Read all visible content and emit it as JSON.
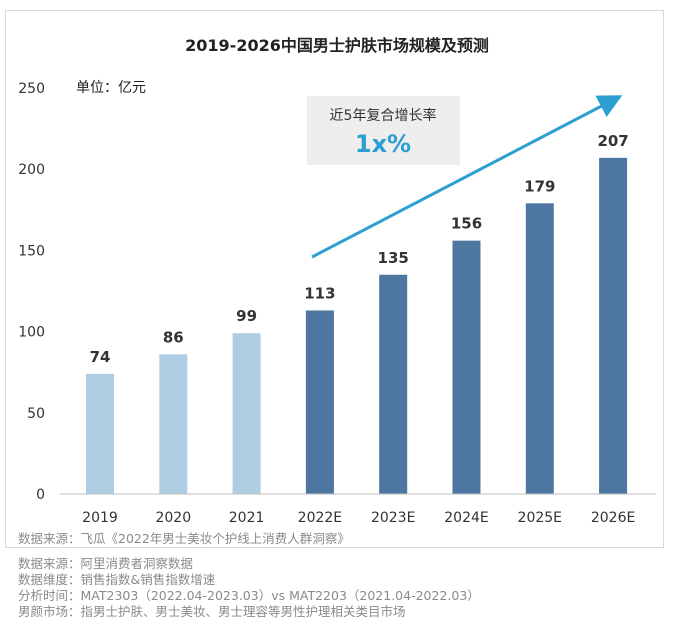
{
  "chart_data": {
    "type": "bar",
    "title": "2019-2026中国男士护肤市场规模及预测",
    "unit_label": "单位：亿元",
    "categories": [
      "2019",
      "2020",
      "2021",
      "2022E",
      "2023E",
      "2024E",
      "2025E",
      "2026E"
    ],
    "values": [
      74,
      86,
      99,
      113,
      135,
      156,
      179,
      207
    ],
    "ylim": [
      0,
      250
    ],
    "yticks": [
      "0",
      "50",
      "100",
      "150",
      "200",
      "250"
    ],
    "grid": false,
    "bar_colors": {
      "actual": "#aecde2",
      "forecast": "#4d76a1"
    },
    "forecast_start_index": 3,
    "annotation": {
      "label": "近5年复合增长率",
      "value": "1x%"
    },
    "source_inline": "数据来源：飞瓜《2022年男士美妆个护线上消费人群洞察》"
  },
  "notes": [
    "数据来源：阿里消费者洞察数据",
    "数据维度：销售指数&销售指数增速",
    "分析时间：MAT2303（2022.04-2023.03）vs MAT2203（2021.04-2022.03）",
    "男颜市场：指男士护肤、男士美妆、男士理容等男性护理相关类目市场"
  ]
}
